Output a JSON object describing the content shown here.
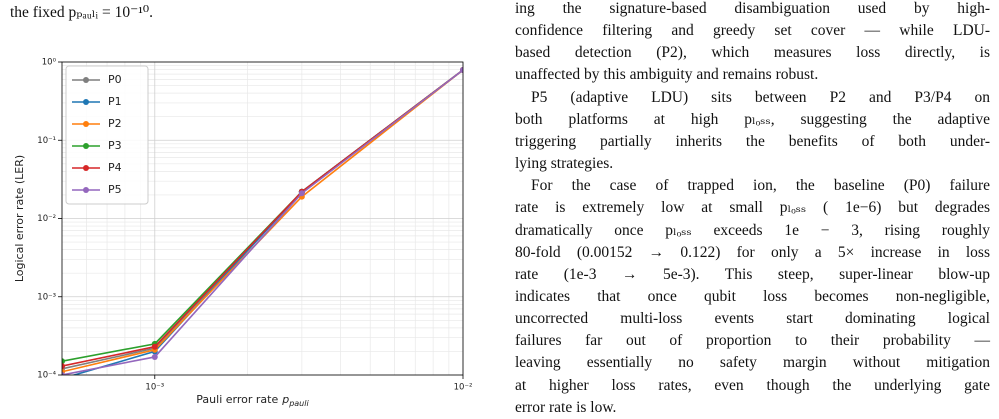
{
  "left_text": [
    "the fixed pₚₐᵤₗᵢ = 10⁻¹⁰."
  ],
  "paragraphs": [
    [
      "ing the signature-based disambiguation used by high-",
      "confidence filtering and greedy set cover — while LDU-",
      "based detection (P2), which measures loss directly, is",
      "unaffected by this ambiguity and remains robust."
    ],
    [
      "P5 (adaptive LDU) sits between P2 and P3/P4 on",
      "both platforms at high pₗₒₛₛ, suggesting the adaptive",
      "triggering partially inherits the benefits of both under-",
      "lying strategies."
    ],
    [
      "For the case of trapped ion, the baseline (P0) failure",
      "rate is extremely low at small pₗₒₛₛ ( 1e−6) but degrades",
      "dramatically once pₗₒₛₛ exceeds  1e − 3, rising roughly",
      "80-fold (0.00152 → 0.122) for only a 5× increase in loss",
      "rate (1e-3 → 5e-3).  This steep, super-linear blow-up",
      "indicates that once qubit loss becomes non-negligible,",
      "uncorrected multi-loss events start dominating logical",
      "failures far out of proportion to their probability —",
      "leaving essentially no safety margin without mitigation",
      "at higher loss rates, even though the underlying gate",
      "error rate is low."
    ]
  ],
  "chart_data": {
    "type": "line",
    "xlabel": "Pauli error rate",
    "xlabel_symbol": "p",
    "xlabel_sub": "pauli",
    "ylabel": "Logical error rate (LER)",
    "x": [
      0.0005,
      0.001,
      0.003,
      0.01
    ],
    "xlim": [
      0.0005,
      0.01
    ],
    "ylim": [
      0.0001,
      1
    ],
    "log_x": true,
    "log_y": true,
    "grid": true,
    "legend": "upper left",
    "xticks": [
      {
        "value": 0.001,
        "label": "10⁻³"
      },
      {
        "value": 0.01,
        "label": "10⁻²"
      }
    ],
    "yticks": [
      {
        "value": 0.0001,
        "label": "10⁻⁴"
      },
      {
        "value": 0.001,
        "label": "10⁻³"
      },
      {
        "value": 0.01,
        "label": "10⁻²"
      },
      {
        "value": 0.1,
        "label": "10⁻¹"
      },
      {
        "value": 1,
        "label": "10⁰"
      }
    ],
    "series": [
      {
        "name": "P0",
        "color": "#7f7f7f",
        "values": [
          0.00012,
          0.00022,
          0.022,
          0.79
        ]
      },
      {
        "name": "P1",
        "color": "#1f77b4",
        "values": [
          9e-05,
          0.0002,
          0.022,
          0.79
        ]
      },
      {
        "name": "P2",
        "color": "#ff7f0e",
        "values": [
          0.00011,
          0.00021,
          0.019,
          0.79
        ]
      },
      {
        "name": "P3",
        "color": "#2ca02c",
        "values": [
          0.00015,
          0.00025,
          0.022,
          0.79
        ]
      },
      {
        "name": "P4",
        "color": "#d62728",
        "values": [
          0.00013,
          0.00023,
          0.022,
          0.79
        ]
      },
      {
        "name": "P5",
        "color": "#9467bd",
        "values": [
          0.0001,
          0.00017,
          0.021,
          0.79
        ]
      }
    ]
  }
}
